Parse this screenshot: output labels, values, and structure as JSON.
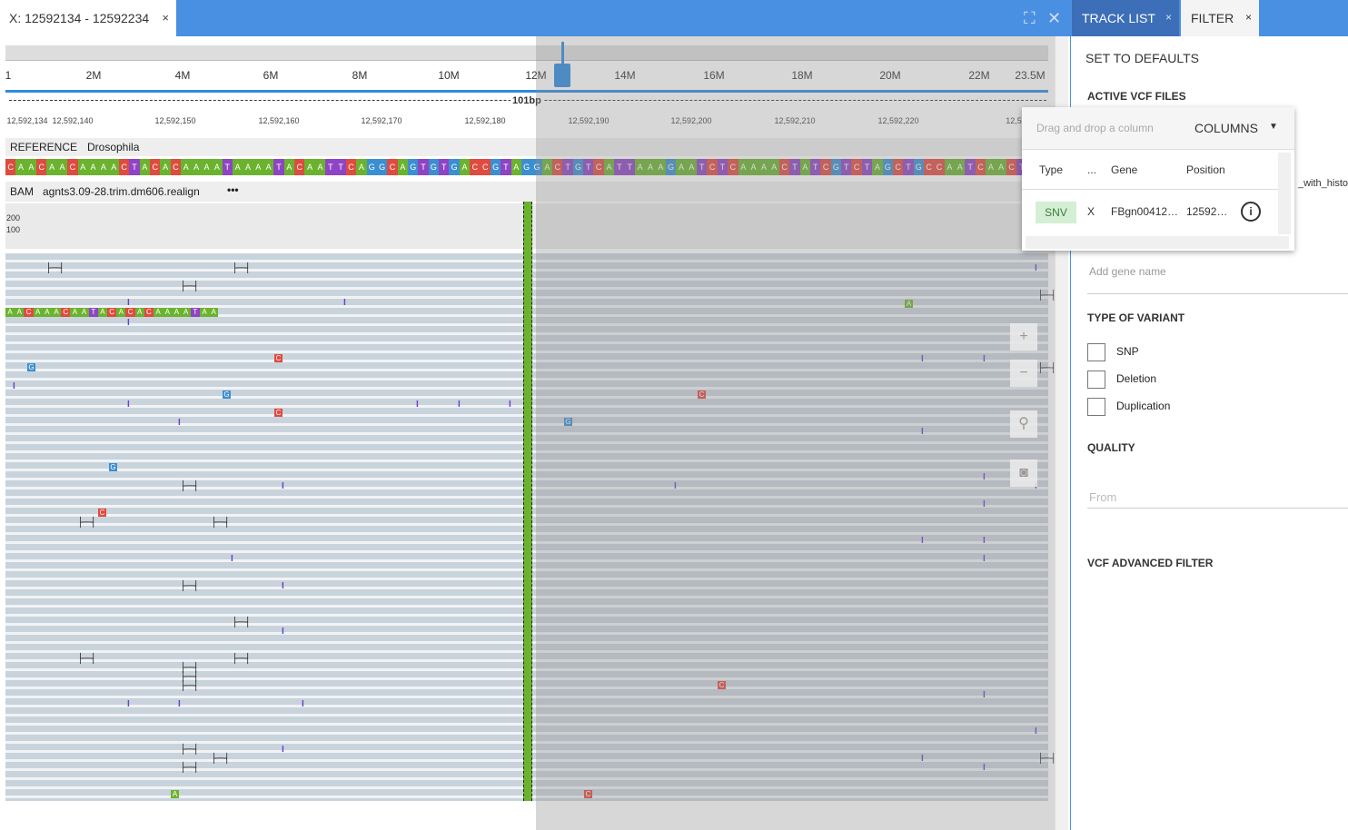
{
  "tab": {
    "title": "X: 12592134 - 12592234",
    "close": "×"
  },
  "window_controls": {
    "maximize": "⛶",
    "close": "✕"
  },
  "panel_tabs": [
    {
      "label": "TRACK LIST",
      "close": "×",
      "active": true
    },
    {
      "label": "FILTER",
      "close": "×",
      "active": false
    }
  ],
  "ruler": {
    "ticks": [
      "1",
      "2M",
      "4M",
      "6M",
      "8M",
      "10M",
      "12M",
      "14M",
      "16M",
      "18M",
      "20M",
      "22M",
      "23.5M"
    ],
    "span_label": "101bp"
  },
  "position_ticks": [
    "12,592,134",
    "12,592,140",
    "12,592,150",
    "12,592,160",
    "12,592,170",
    "12,592,180",
    "12,592,190",
    "12,592,200",
    "12,592,210",
    "12,592,220",
    "12,5"
  ],
  "reference": {
    "label": "REFERENCE",
    "name": "Drosophila",
    "sequence": "CAACAACAAAACTACACAAAATAAAATACAATTCAGGCAGTGTGACCGTAGGACTGTCATTAAAGAATCTCAAAACTATCGTCTAGCTGCCAATCAACT"
  },
  "bam": {
    "label": "BAM",
    "name": "agnts3.09-28.trim.dm606.realign",
    "menu": "•••",
    "coverage": [
      "200",
      "100"
    ]
  },
  "read_seq": "AACAAACAATACACACAAAATAA",
  "sidebar": {
    "set_defaults": "SET TO DEFAULTS",
    "active_vcf": "ACTIVE VCF FILES",
    "vcf_file_partial": "_with_histo",
    "gene_placeholder": "Add gene name",
    "type_of_variant": "TYPE OF VARIANT",
    "variants": [
      "SNP",
      "Deletion",
      "Duplication"
    ],
    "quality": "QUALITY",
    "quality_from": "From",
    "vcf_advanced": "VCF ADVANCED FILTER"
  },
  "popup": {
    "drag_hint": "Drag and drop a column",
    "columns_label": "COLUMNS",
    "headers": [
      "Type",
      "...",
      "Gene",
      "Position"
    ],
    "row": {
      "type": "SNV",
      "chr": "X",
      "gene": "FBgn00412…",
      "position": "12592…"
    }
  },
  "colors": {
    "A": "#6bb32e",
    "C": "#e04a3f",
    "G": "#3b8fd1",
    "T": "#8e44c4",
    "accent": "#4a90e2"
  }
}
